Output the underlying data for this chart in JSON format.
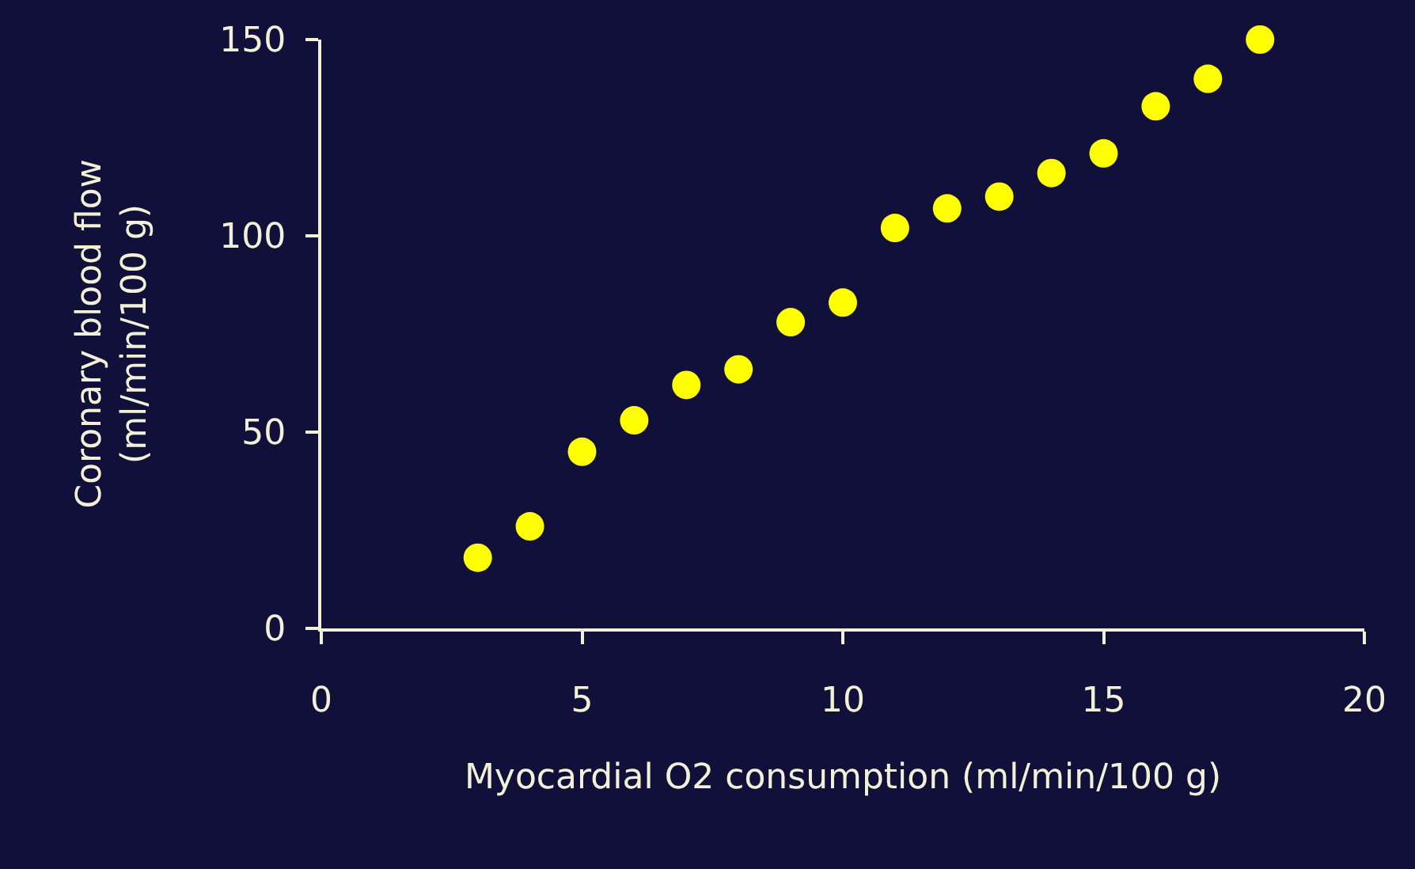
{
  "chart_data": {
    "type": "scatter",
    "xlabel": "Myocardial O2 consumption (ml/min/100 g)",
    "ylabel": "Coronary blood flow\n(ml/min/100 g)",
    "x": [
      3,
      4,
      5,
      6,
      7,
      8,
      9,
      10,
      11,
      12,
      13,
      14,
      15,
      16,
      17,
      18
    ],
    "series": [
      {
        "color": "#ffff00",
        "values": [
          18,
          26,
          45,
          53,
          62,
          66,
          78,
          83,
          102,
          107,
          110,
          116,
          121,
          133,
          140,
          150
        ]
      }
    ],
    "xlim": [
      0,
      20
    ],
    "xticks": [
      0,
      5,
      10,
      15,
      20
    ],
    "ylim": [
      0,
      150
    ],
    "yticks": [
      0,
      50,
      100,
      150
    ],
    "grid": false,
    "legend": false,
    "marker": "circle"
  }
}
